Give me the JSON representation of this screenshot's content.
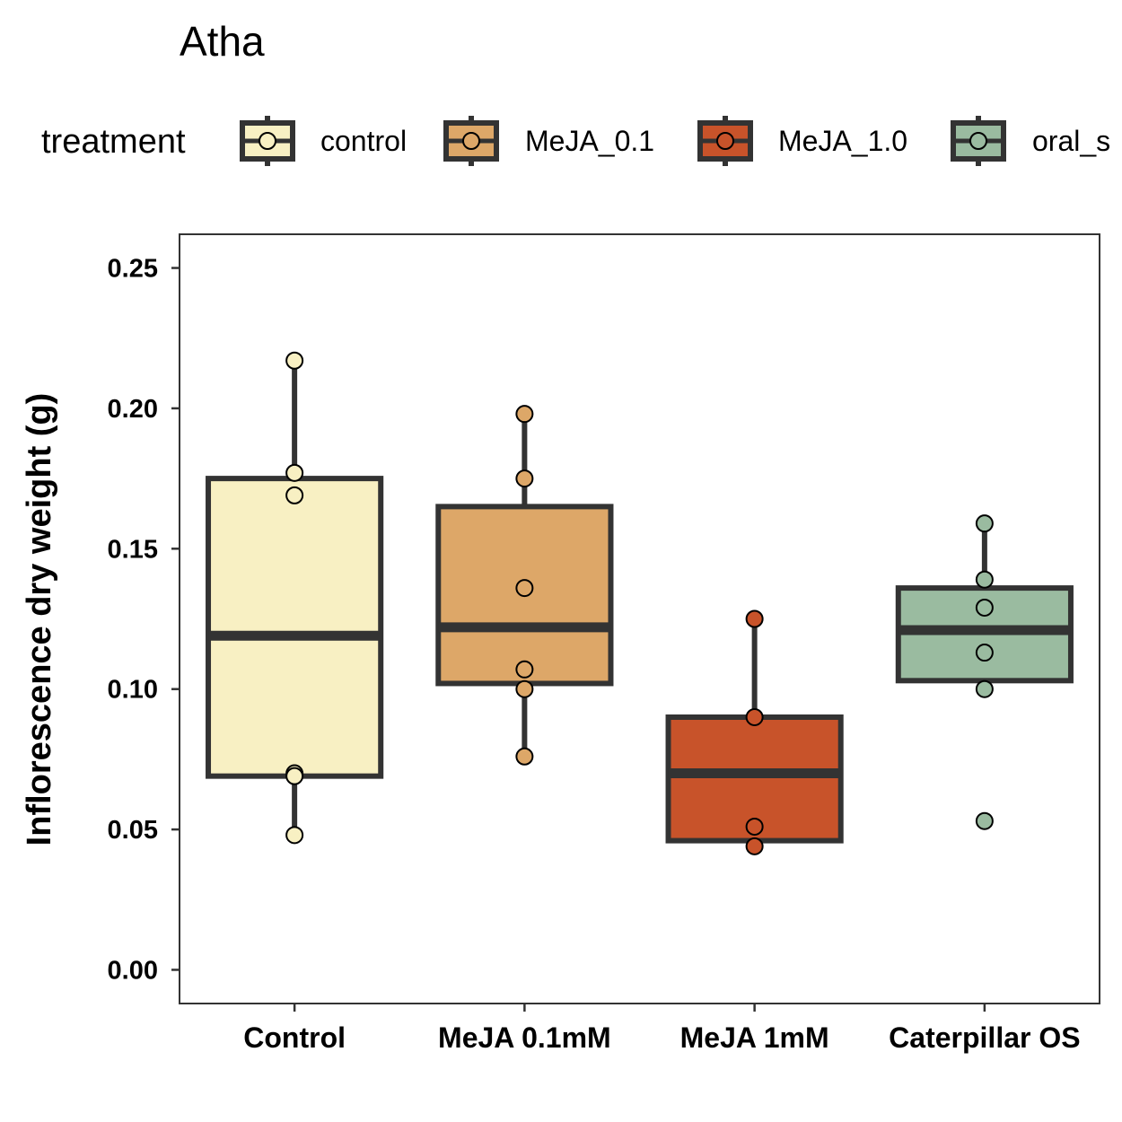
{
  "chart_data": {
    "type": "box",
    "title": "Atha",
    "ylabel": "Inflorescence dry weight (g)",
    "xlabel": "",
    "ylim": [
      -0.012,
      0.262
    ],
    "y_ticks": [
      0.0,
      0.05,
      0.1,
      0.15,
      0.2,
      0.25
    ],
    "y_tick_labels": [
      "0.00",
      "0.05",
      "0.10",
      "0.15",
      "0.20",
      "0.25"
    ],
    "grid": false,
    "legend": {
      "title": "treatment",
      "position": "top",
      "entries": [
        {
          "label": "control",
          "color": "#F8F0C3"
        },
        {
          "label": "MeJA_0.1",
          "color": "#DDA768"
        },
        {
          "label": "MeJA_1.0",
          "color": "#C8532A"
        },
        {
          "label": "oral_s",
          "color": "#9ABBA0"
        }
      ]
    },
    "categories": [
      "Control",
      "MeJA 0.1mM",
      "MeJA 1mM",
      "Caterpillar OS"
    ],
    "series": [
      {
        "name": "control",
        "color": "#F8F0C3",
        "box": {
          "q1": 0.069,
          "median": 0.119,
          "q3": 0.175,
          "whisker_low": 0.048,
          "whisker_high": 0.217
        },
        "points": [
          0.217,
          0.177,
          0.169,
          0.07,
          0.069,
          0.048
        ]
      },
      {
        "name": "MeJA_0.1",
        "color": "#DDA768",
        "box": {
          "q1": 0.102,
          "median": 0.122,
          "q3": 0.165,
          "whisker_low": 0.076,
          "whisker_high": 0.198
        },
        "points": [
          0.198,
          0.175,
          0.136,
          0.107,
          0.1,
          0.076
        ]
      },
      {
        "name": "MeJA_1.0",
        "color": "#C8532A",
        "box": {
          "q1": 0.046,
          "median": 0.07,
          "q3": 0.09,
          "whisker_low": 0.044,
          "whisker_high": 0.125
        },
        "points": [
          0.125,
          0.09,
          0.051,
          0.044
        ]
      },
      {
        "name": "oral_s",
        "color": "#9ABBA0",
        "box": {
          "q1": 0.103,
          "median": 0.121,
          "q3": 0.136,
          "whisker_low": 0.1,
          "whisker_high": 0.159
        },
        "points": [
          0.159,
          0.139,
          0.129,
          0.113,
          0.1,
          0.053
        ]
      }
    ]
  }
}
